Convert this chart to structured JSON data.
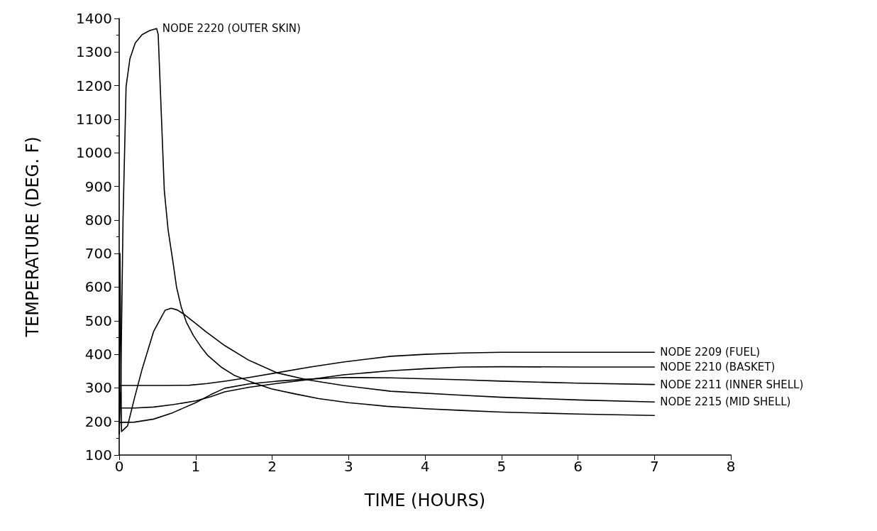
{
  "chart_data": {
    "type": "line",
    "xlabel": "TIME (HOURS)",
    "ylabel": "TEMPERATURE (DEG. F)",
    "xlim": [
      0,
      8
    ],
    "xticks": [
      0,
      1,
      2,
      3,
      4,
      5,
      6,
      7,
      8
    ],
    "ylim": [
      100,
      1400
    ],
    "yticks": [
      100,
      200,
      300,
      400,
      500,
      600,
      700,
      800,
      900,
      1000,
      1100,
      1200,
      1300,
      1400
    ],
    "grid": false,
    "legend": false,
    "marker": "none",
    "line_style": "solid",
    "series": [
      {
        "name": "NODE 2220 (OUTER SKIN)",
        "color": "#000000",
        "x": [
          0,
          0.02,
          0.05,
          0.09,
          0.14,
          0.21,
          0.3,
          0.4,
          0.49,
          0.51,
          0.55,
          0.59,
          0.64,
          0.7,
          0.75,
          0.81,
          0.88,
          0.97,
          1.07,
          1.16,
          1.34,
          1.5,
          1.72,
          1.99,
          2.3,
          2.61,
          3,
          3.5,
          4,
          4.48,
          5,
          6,
          7
        ],
        "values": [
          163,
          300,
          800,
          1197,
          1280,
          1327,
          1352,
          1364,
          1370,
          1352,
          1120,
          887,
          770,
          680,
          600,
          542,
          495,
          456,
          422,
          396,
          361,
          338,
          318,
          297,
          282,
          268,
          256,
          245,
          238,
          233,
          228,
          222,
          218
        ]
      },
      {
        "name": "NODE 2209 (FUEL)",
        "color": "#000000",
        "x": [
          0,
          0.3,
          0.6,
          0.92,
          1.15,
          1.38,
          1.7,
          2.06,
          2.5,
          2.93,
          3.25,
          3.55,
          4,
          4.48,
          5,
          6,
          7
        ],
        "values": [
          307,
          307,
          307,
          308,
          313,
          320,
          331,
          345,
          362,
          377,
          386,
          394,
          400,
          404,
          406,
          406,
          406
        ]
      },
      {
        "name": "NODE 2210 (BASKET)",
        "color": "#000000",
        "x": [
          0,
          0.2,
          0.45,
          0.7,
          1.0,
          1.2,
          1.38,
          1.7,
          2.06,
          2.46,
          2.93,
          3.55,
          4,
          4.48,
          5,
          6,
          7
        ],
        "values": [
          240,
          240,
          243,
          250,
          261,
          274,
          288,
          302,
          313,
          324,
          339,
          351,
          357,
          362,
          363,
          362,
          362
        ]
      },
      {
        "name": "NODE 2211 (INNER SHELL)",
        "color": "#000000",
        "x": [
          0,
          0.2,
          0.45,
          0.7,
          1.0,
          1.2,
          1.38,
          1.7,
          2.06,
          2.46,
          2.93,
          3.55,
          4.48,
          5,
          6,
          7
        ],
        "values": [
          197,
          198,
          207,
          226,
          256,
          280,
          299,
          312,
          320,
          326,
          331,
          330,
          324,
          320,
          314,
          310
        ]
      },
      {
        "name": "NODE 2215 (MID SHELL)",
        "color": "#000000",
        "x": [
          0,
          0.01,
          0.03,
          0.11,
          0.2,
          0.3,
          0.45,
          0.6,
          0.68,
          0.76,
          0.85,
          1.0,
          1.13,
          1.38,
          1.69,
          2.06,
          2.46,
          2.93,
          3.55,
          4.48,
          5,
          6,
          7
        ],
        "values": [
          163,
          700,
          170,
          187,
          270,
          356,
          468,
          531,
          537,
          532,
          519,
          492,
          468,
          426,
          383,
          345,
          324,
          307,
          290,
          278,
          272,
          264,
          258
        ]
      }
    ]
  }
}
